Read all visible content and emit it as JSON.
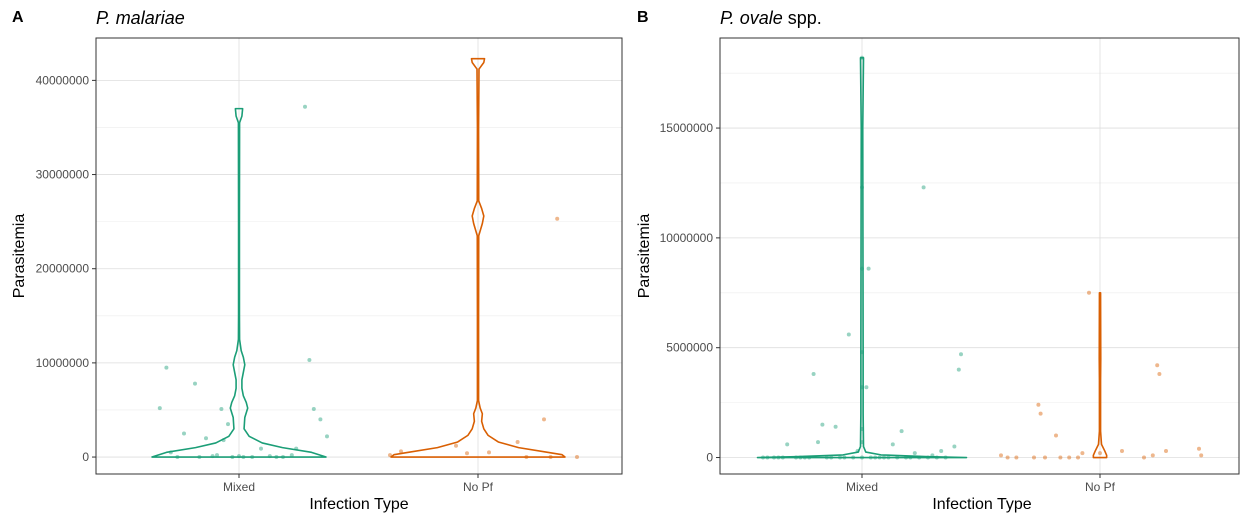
{
  "chart_data": [
    {
      "panel": "A",
      "title": "P. malariae",
      "type": "violin",
      "xlabel": "Infection Type",
      "ylabel": "Parasitemia",
      "categories": [
        "Mixed",
        "No Pf"
      ],
      "ylim": [
        -1800000,
        44500000
      ],
      "yticks": [
        0,
        10000000,
        20000000,
        30000000,
        40000000
      ],
      "ytick_labels": [
        "0",
        "10000000",
        "20000000",
        "30000000",
        "40000000"
      ],
      "grid": true,
      "legend": "none",
      "colors": {
        "Mixed": "#1b9e77",
        "No Pf": "#d95f02"
      },
      "series": [
        {
          "category": "Mixed",
          "violin_profile": [
            [
              0,
              0.6
            ],
            [
              500000,
              0.5
            ],
            [
              1000000,
              0.3
            ],
            [
              1500000,
              0.16
            ],
            [
              2200000,
              0.07
            ],
            [
              3000000,
              0.035
            ],
            [
              4200000,
              0.04
            ],
            [
              5200000,
              0.06
            ],
            [
              5800000,
              0.05
            ],
            [
              6500000,
              0.03
            ],
            [
              7300000,
              0.02
            ],
            [
              8200000,
              0.02
            ],
            [
              9000000,
              0.03
            ],
            [
              9800000,
              0.04
            ],
            [
              10600000,
              0.03
            ],
            [
              11300000,
              0.015
            ],
            [
              12500000,
              0.004
            ],
            [
              15000000,
              0.003
            ],
            [
              25000000,
              0.003
            ],
            [
              35500000,
              0.004
            ],
            [
              36200000,
              0.02
            ],
            [
              37000000,
              0.025
            ]
          ],
          "points": [
            {
              "x": -0.36,
              "y": 5200000
            },
            {
              "x": -0.33,
              "y": 9500000
            },
            {
              "x": -0.31,
              "y": 500000
            },
            {
              "x": -0.28,
              "y": 0
            },
            {
              "x": -0.25,
              "y": 2500000
            },
            {
              "x": -0.2,
              "y": 7800000
            },
            {
              "x": -0.18,
              "y": 0
            },
            {
              "x": -0.15,
              "y": 2000000
            },
            {
              "x": -0.12,
              "y": 100000
            },
            {
              "x": -0.1,
              "y": 200000
            },
            {
              "x": -0.08,
              "y": 5100000
            },
            {
              "x": -0.07,
              "y": 1800000
            },
            {
              "x": -0.05,
              "y": 3500000
            },
            {
              "x": -0.03,
              "y": 0
            },
            {
              "x": 0.0,
              "y": 100000
            },
            {
              "x": 0.02,
              "y": 0
            },
            {
              "x": 0.06,
              "y": 0
            },
            {
              "x": 0.1,
              "y": 900000
            },
            {
              "x": 0.14,
              "y": 100000
            },
            {
              "x": 0.17,
              "y": 0
            },
            {
              "x": 0.2,
              "y": 0
            },
            {
              "x": 0.24,
              "y": 200000
            },
            {
              "x": 0.26,
              "y": 900000
            },
            {
              "x": 0.3,
              "y": 37200000
            },
            {
              "x": 0.32,
              "y": 10300000
            },
            {
              "x": 0.34,
              "y": 5100000
            },
            {
              "x": 0.37,
              "y": 4000000
            },
            {
              "x": 0.4,
              "y": 2200000
            }
          ]
        },
        {
          "category": "No Pf",
          "violin_profile": [
            [
              0,
              0.6
            ],
            [
              250000,
              0.58
            ],
            [
              500000,
              0.48
            ],
            [
              1000000,
              0.28
            ],
            [
              1600000,
              0.14
            ],
            [
              2300000,
              0.07
            ],
            [
              3000000,
              0.04
            ],
            [
              3800000,
              0.025
            ],
            [
              4600000,
              0.03
            ],
            [
              5200000,
              0.015
            ],
            [
              6000000,
              0.004
            ],
            [
              15000000,
              0.004
            ],
            [
              23500000,
              0.005
            ],
            [
              24800000,
              0.03
            ],
            [
              25600000,
              0.04
            ],
            [
              26400000,
              0.025
            ],
            [
              27200000,
              0.005
            ],
            [
              35000000,
              0.004
            ],
            [
              41200000,
              0.007
            ],
            [
              41900000,
              0.04
            ],
            [
              42300000,
              0.045
            ]
          ],
          "points": [
            {
              "x": -0.4,
              "y": 200000
            },
            {
              "x": -0.35,
              "y": 600000
            },
            {
              "x": -0.1,
              "y": 1200000
            },
            {
              "x": -0.05,
              "y": 400000
            },
            {
              "x": 0.05,
              "y": 500000
            },
            {
              "x": 0.18,
              "y": 1600000
            },
            {
              "x": 0.22,
              "y": 0
            },
            {
              "x": 0.3,
              "y": 4000000
            },
            {
              "x": 0.33,
              "y": 0
            },
            {
              "x": 0.36,
              "y": 25300000
            },
            {
              "x": 0.45,
              "y": 0
            }
          ]
        }
      ]
    },
    {
      "panel": "B",
      "title": "P. ovale",
      "title_suffix": " spp.",
      "type": "violin",
      "xlabel": "Infection Type",
      "ylabel": "Parasitemia",
      "categories": [
        "Mixed",
        "No Pf"
      ],
      "ylim": [
        -750000,
        19100000
      ],
      "yticks": [
        0,
        5000000,
        10000000,
        15000000
      ],
      "ytick_labels": [
        "0",
        "5000000",
        "10000000",
        "15000000"
      ],
      "grid": true,
      "legend": "none",
      "colors": {
        "Mixed": "#1b9e77",
        "No Pf": "#d95f02"
      },
      "series": [
        {
          "category": "Mixed",
          "violin_profile": [
            [
              0,
              0.55
            ],
            [
              40000,
              0.35
            ],
            [
              120000,
              0.1
            ],
            [
              250000,
              0.02
            ],
            [
              500000,
              0.008
            ],
            [
              2000000,
              0.006
            ],
            [
              5000000,
              0.006
            ],
            [
              10000000,
              0.005
            ],
            [
              15000000,
              0.004
            ],
            [
              18200000,
              0.008
            ]
          ],
          "points": [
            {
              "x": -0.45,
              "y": 0
            },
            {
              "x": -0.43,
              "y": 0
            },
            {
              "x": -0.4,
              "y": 0
            },
            {
              "x": -0.38,
              "y": 0
            },
            {
              "x": -0.36,
              "y": 0
            },
            {
              "x": -0.34,
              "y": 600000
            },
            {
              "x": -0.3,
              "y": 0
            },
            {
              "x": -0.28,
              "y": 0
            },
            {
              "x": -0.26,
              "y": 0
            },
            {
              "x": -0.24,
              "y": 0
            },
            {
              "x": -0.22,
              "y": 3800000
            },
            {
              "x": -0.2,
              "y": 700000
            },
            {
              "x": -0.18,
              "y": 1500000
            },
            {
              "x": -0.16,
              "y": 0
            },
            {
              "x": -0.14,
              "y": 0
            },
            {
              "x": -0.12,
              "y": 1400000
            },
            {
              "x": -0.1,
              "y": 0
            },
            {
              "x": -0.08,
              "y": 0
            },
            {
              "x": -0.06,
              "y": 5600000
            },
            {
              "x": -0.04,
              "y": 0
            },
            {
              "x": -0.02,
              "y": 300000
            },
            {
              "x": 0.0,
              "y": 0
            },
            {
              "x": 0.0,
              "y": 8600000
            },
            {
              "x": 0.0,
              "y": 12300000
            },
            {
              "x": 0.0,
              "y": 3200000
            },
            {
              "x": 0.0,
              "y": 4800000
            },
            {
              "x": 0.0,
              "y": 1300000
            },
            {
              "x": 0.0,
              "y": 700000
            },
            {
              "x": 0.0,
              "y": 18200000
            },
            {
              "x": 0.02,
              "y": 3200000
            },
            {
              "x": 0.03,
              "y": 8600000
            },
            {
              "x": 0.04,
              "y": 0
            },
            {
              "x": 0.06,
              "y": 0
            },
            {
              "x": 0.08,
              "y": 0
            },
            {
              "x": 0.1,
              "y": 0
            },
            {
              "x": 0.12,
              "y": 0
            },
            {
              "x": 0.14,
              "y": 600000
            },
            {
              "x": 0.16,
              "y": 0
            },
            {
              "x": 0.18,
              "y": 1200000
            },
            {
              "x": 0.2,
              "y": 0
            },
            {
              "x": 0.22,
              "y": 0
            },
            {
              "x": 0.24,
              "y": 200000
            },
            {
              "x": 0.26,
              "y": 0
            },
            {
              "x": 0.28,
              "y": 12300000
            },
            {
              "x": 0.3,
              "y": 0
            },
            {
              "x": 0.32,
              "y": 100000
            },
            {
              "x": 0.34,
              "y": 0
            },
            {
              "x": 0.36,
              "y": 300000
            },
            {
              "x": 0.38,
              "y": 0
            },
            {
              "x": 0.42,
              "y": 500000
            },
            {
              "x": 0.44,
              "y": 4000000
            },
            {
              "x": 0.45,
              "y": 4700000
            }
          ]
        },
        {
          "category": "No Pf",
          "violin_profile": [
            [
              0,
              0.035
            ],
            [
              100000,
              0.035
            ],
            [
              300000,
              0.025
            ],
            [
              600000,
              0.008
            ],
            [
              1200000,
              0.003
            ],
            [
              3500000,
              0.003
            ],
            [
              4500000,
              0.004
            ],
            [
              7500000,
              0.003
            ]
          ],
          "points": [
            {
              "x": -0.45,
              "y": 100000
            },
            {
              "x": -0.42,
              "y": 0
            },
            {
              "x": -0.38,
              "y": 0
            },
            {
              "x": -0.3,
              "y": 0
            },
            {
              "x": -0.28,
              "y": 2400000
            },
            {
              "x": -0.27,
              "y": 2000000
            },
            {
              "x": -0.25,
              "y": 0
            },
            {
              "x": -0.2,
              "y": 1000000
            },
            {
              "x": -0.18,
              "y": 0
            },
            {
              "x": -0.14,
              "y": 0
            },
            {
              "x": -0.1,
              "y": 0
            },
            {
              "x": -0.08,
              "y": 200000
            },
            {
              "x": -0.05,
              "y": 7500000
            },
            {
              "x": 0.0,
              "y": 200000
            },
            {
              "x": 0.1,
              "y": 300000
            },
            {
              "x": 0.2,
              "y": 0
            },
            {
              "x": 0.24,
              "y": 100000
            },
            {
              "x": 0.26,
              "y": 4200000
            },
            {
              "x": 0.27,
              "y": 3800000
            },
            {
              "x": 0.3,
              "y": 300000
            },
            {
              "x": 0.45,
              "y": 400000
            },
            {
              "x": 0.46,
              "y": 100000
            }
          ]
        }
      ]
    }
  ]
}
